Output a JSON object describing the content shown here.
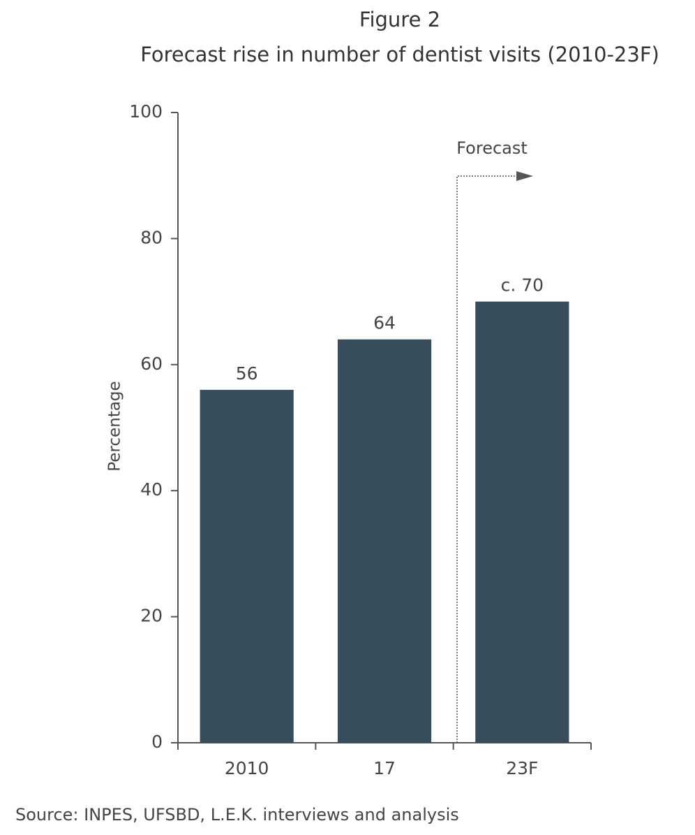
{
  "chart_data": {
    "type": "bar",
    "title": "Figure 2",
    "subtitle": "Forecast rise in number of dentist visits (2010-23F)",
    "ylabel": "Percentage",
    "annotation": "Forecast",
    "source": "Source: INPES, UFSBD, L.E.K. interviews and analysis",
    "categories": [
      "2010",
      "17",
      "23F"
    ],
    "values": [
      56,
      64,
      70
    ],
    "value_labels": [
      "56",
      "64",
      "c. 70"
    ],
    "color": "#374d5b",
    "ylim": [
      0,
      100
    ],
    "yticks": [
      0,
      20,
      40,
      60,
      80,
      100
    ],
    "grid": false
  }
}
